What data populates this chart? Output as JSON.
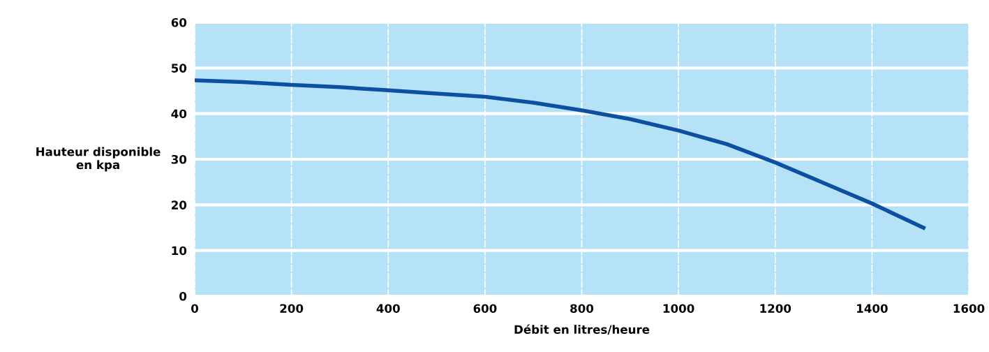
{
  "chart_data": {
    "type": "line",
    "xlabel": "Débit en litres/heure",
    "ylabel": "Hauteur disponible\nen kpa",
    "x": [
      0,
      100,
      200,
      300,
      400,
      500,
      600,
      700,
      800,
      900,
      1000,
      1100,
      1200,
      1300,
      1400,
      1510
    ],
    "series": [
      {
        "color": "#0d4fa0",
        "values": [
          47.3,
          46.9,
          46.3,
          45.8,
          45.1,
          44.4,
          43.7,
          42.4,
          40.7,
          38.8,
          36.3,
          33.3,
          29.3,
          24.8,
          20.3,
          14.8
        ]
      }
    ],
    "xlim": [
      0,
      1600
    ],
    "xticks": [
      0,
      200,
      400,
      600,
      800,
      1000,
      1200,
      1400,
      1600
    ],
    "ylim": [
      0,
      60
    ],
    "yticks": [
      0,
      10,
      20,
      30,
      40,
      50,
      60
    ],
    "grid": true
  }
}
